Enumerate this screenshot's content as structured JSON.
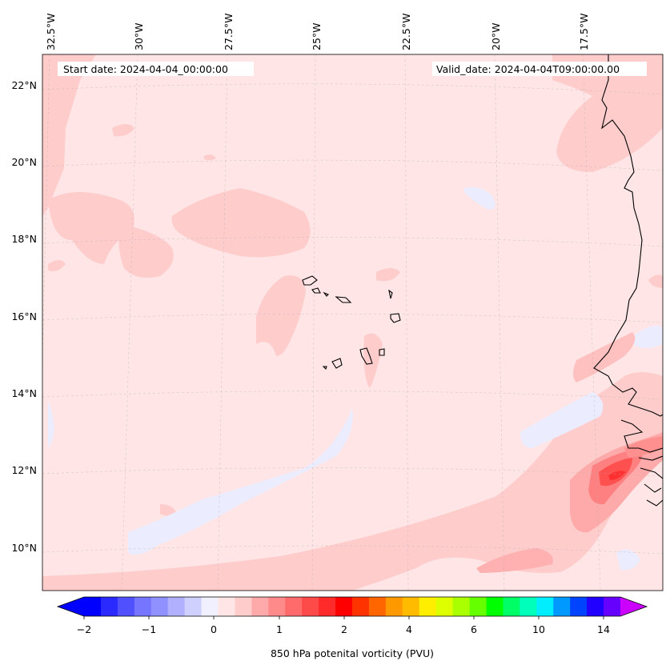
{
  "map": {
    "start_label": "Start date: 2024-04-04_00:00:00",
    "valid_label": "Valid_date: 2024-04-04T09:00:00.00",
    "lon_labels": [
      "32.5°W",
      "30°W",
      "27.5°W",
      "25°W",
      "22.5°W",
      "20°W",
      "17.5°W"
    ],
    "lat_labels": [
      "22°N",
      "20°N",
      "18°N",
      "16°N",
      "14°N",
      "12°N",
      "10°N"
    ],
    "gridlines": true,
    "coastline_color": "#000000",
    "background_fill": "#ffe5e5"
  },
  "colorbar": {
    "label": "850 hPa potenital vorticity (PVU)",
    "tick_labels": [
      "−2",
      "−1",
      "0",
      "1",
      "2",
      "4",
      "6",
      "10",
      "14"
    ],
    "extend": "both",
    "colors": [
      "#0000ff",
      "#2a2aff",
      "#5050ff",
      "#7575ff",
      "#9090ff",
      "#b0b0ff",
      "#d0d0ff",
      "#f0f0ff",
      "#ffe5e5",
      "#ffcccc",
      "#ffaaaa",
      "#ff8a8a",
      "#ff6a6a",
      "#ff4a4a",
      "#ff2a2a",
      "#ff0000",
      "#ff3300",
      "#ff6600",
      "#ff9900",
      "#ffbb00",
      "#ffee00",
      "#ddff00",
      "#aaff00",
      "#66ff00",
      "#00ff00",
      "#00ff66",
      "#00ffbb",
      "#00eeff",
      "#0099ff",
      "#0044ff",
      "#2200ff",
      "#6600ff"
    ],
    "over_color": "#cc00ff",
    "under_color": "#0000ff"
  }
}
